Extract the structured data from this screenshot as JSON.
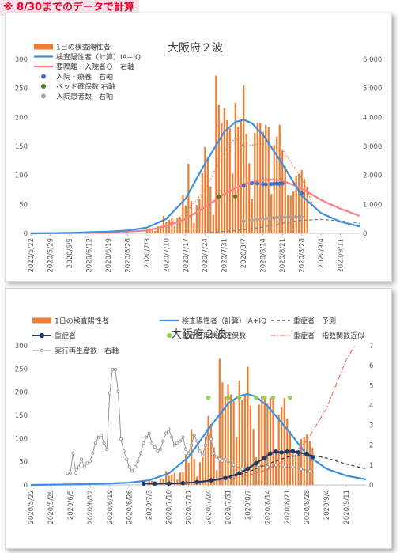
{
  "note": "※ 8/30までのデータで計算",
  "colors": {
    "bar": "#ed7d31",
    "blue": "#3d8fe0",
    "pink": "#ff7f7f",
    "navy": "#2f5597",
    "green": "#4d7f2d",
    "gray": "#a6a6a6",
    "lime": "#92d050",
    "dark": "#404040",
    "red": "#f07070"
  },
  "x_ticks": [
    "2020/5/22",
    "2020/5/29",
    "2020/6/5",
    "2020/6/12",
    "2020/6/19",
    "2020/6/26",
    "2020/7/3",
    "2020/7/10",
    "2020/7/17",
    "2020/7/24",
    "2020/7/31",
    "2020/8/7",
    "2020/8/14",
    "2020/8/21",
    "2020/8/28",
    "2020/9/4",
    "2020/9/11"
  ],
  "chart_data": [
    {
      "type": "bar",
      "title": "大阪府２波",
      "x_start": "2020/5/22",
      "x_end": "2020/9/18",
      "ylim": [
        0,
        300
      ],
      "yticks": [
        0,
        50,
        100,
        150,
        200,
        250,
        300
      ],
      "y2lim": [
        0,
        6000
      ],
      "y2ticks": [
        "0",
        "1,000",
        "2,000",
        "3,000",
        "4,000",
        "5,000",
        "6,000"
      ],
      "legend": {
        "bar": "1日の検査陽性者",
        "fit": "検査陽性者（計算）IA+IQ",
        "q": "要隔離・入院者Ｑ　右軸",
        "hosp": "入院・療養　右軸",
        "beds": "ベッド確保数 右軸",
        "inpat": "入院患者数　右軸"
      },
      "daily_positive": {
        "dates": [
          "2020/7/3",
          "2020/7/4",
          "2020/7/5",
          "2020/7/6",
          "2020/7/7",
          "2020/7/8",
          "2020/7/9",
          "2020/7/10",
          "2020/7/11",
          "2020/7/12",
          "2020/7/13",
          "2020/7/14",
          "2020/7/15",
          "2020/7/16",
          "2020/7/17",
          "2020/7/18",
          "2020/7/19",
          "2020/7/20",
          "2020/7/21",
          "2020/7/22",
          "2020/7/23",
          "2020/7/24",
          "2020/7/25",
          "2020/7/26",
          "2020/7/27",
          "2020/7/28",
          "2020/7/29",
          "2020/7/30",
          "2020/7/31",
          "2020/8/1",
          "2020/8/2",
          "2020/8/3",
          "2020/8/4",
          "2020/8/5",
          "2020/8/6",
          "2020/8/7",
          "2020/8/8",
          "2020/8/9",
          "2020/8/10",
          "2020/8/11",
          "2020/8/12",
          "2020/8/13",
          "2020/8/14",
          "2020/8/15",
          "2020/8/16",
          "2020/8/17",
          "2020/8/18",
          "2020/8/19",
          "2020/8/20",
          "2020/8/21",
          "2020/8/22",
          "2020/8/23",
          "2020/8/24",
          "2020/8/25",
          "2020/8/26",
          "2020/8/27",
          "2020/8/28",
          "2020/8/29",
          "2020/8/30"
        ],
        "values": [
          8,
          9,
          6,
          4,
          12,
          13,
          30,
          20,
          23,
          26,
          12,
          27,
          28,
          66,
          48,
          120,
          56,
          18,
          49,
          60,
          104,
          149,
          132,
          81,
          32,
          272,
          221,
          190,
          216,
          195,
          181,
          103,
          225,
          183,
          196,
          255,
          171,
          121,
          59,
          173,
          191,
          190,
          175,
          187,
          183,
          68,
          152,
          167,
          187,
          143,
          116,
          66,
          65,
          72,
          99,
          103,
          109,
          94,
          80
        ]
      },
      "fitted_positive": {
        "dates": [
          "2020/5/22",
          "2020/6/5",
          "2020/6/19",
          "2020/6/26",
          "2020/7/3",
          "2020/7/10",
          "2020/7/17",
          "2020/7/24",
          "2020/7/31",
          "2020/8/4",
          "2020/8/7",
          "2020/8/10",
          "2020/8/14",
          "2020/8/21",
          "2020/8/28",
          "2020/9/4",
          "2020/9/11",
          "2020/9/18"
        ],
        "values": [
          0,
          1,
          3,
          5,
          10,
          25,
          60,
          120,
          175,
          192,
          196,
          190,
          170,
          120,
          65,
          35,
          20,
          12
        ]
      },
      "q_right": {
        "dates": [
          "2020/5/22",
          "2020/6/19",
          "2020/7/3",
          "2020/7/10",
          "2020/7/17",
          "2020/7/24",
          "2020/7/31",
          "2020/8/7",
          "2020/8/14",
          "2020/8/17",
          "2020/8/21",
          "2020/8/28",
          "2020/9/4",
          "2020/9/11",
          "2020/9/18"
        ],
        "values": [
          0,
          20,
          100,
          250,
          500,
          900,
          1350,
          1700,
          1850,
          1860,
          1820,
          1550,
          1150,
          850,
          600
        ]
      },
      "hosp_right": {
        "dates": [
          "2020/8/7",
          "2020/8/10",
          "2020/8/12",
          "2020/8/14",
          "2020/8/15",
          "2020/8/17",
          "2020/8/18",
          "2020/8/19",
          "2020/8/20",
          "2020/8/21",
          "2020/8/28"
        ],
        "values": [
          1640,
          1730,
          1720,
          1700,
          1690,
          1700,
          1710,
          1720,
          1710,
          1720,
          1380
        ]
      },
      "beds_right": {
        "dates": [
          "2020/7/29",
          "2020/8/4"
        ],
        "values": [
          1270,
          1270
        ]
      },
      "inpatients_right": {
        "dates": [
          "2020/8/7",
          "2020/8/10",
          "2020/8/12",
          "2020/8/14",
          "2020/8/16",
          "2020/8/18",
          "2020/8/20",
          "2020/8/22",
          "2020/8/24",
          "2020/8/26",
          "2020/8/28"
        ],
        "values": [
          420,
          450,
          480,
          500,
          520,
          540,
          550,
          560,
          560,
          570,
          570
        ]
      },
      "dotted_right": {
        "dates": [
          "2020/7/3",
          "2020/7/10",
          "2020/7/17",
          "2020/7/24",
          "2020/7/31",
          "2020/8/4",
          "2020/8/7",
          "2020/8/14",
          "2020/8/21",
          "2020/8/28",
          "2020/9/1"
        ],
        "values": [
          50,
          250,
          700,
          1500,
          2800,
          3300,
          3000,
          3100,
          2900,
          1900,
          1000
        ]
      },
      "dashed_right": {
        "dates": [
          "2020/7/24",
          "2020/8/7",
          "2020/8/14",
          "2020/8/21",
          "2020/8/28",
          "2020/9/4",
          "2020/9/11",
          "2020/9/18"
        ],
        "values": [
          20,
          120,
          220,
          350,
          450,
          480,
          430,
          350
        ]
      }
    },
    {
      "type": "bar",
      "title": "大阪府２波",
      "x_start": "2020/5/22",
      "x_end": "2020/9/18",
      "ylim": [
        0,
        300
      ],
      "yticks": [
        0,
        50,
        100,
        150,
        200,
        250,
        300
      ],
      "y2lim": [
        0,
        7
      ],
      "y2ticks": [
        0,
        1,
        2,
        3,
        4,
        5,
        6,
        7
      ],
      "legend": {
        "bar": "1日の検査陽性者",
        "fit": "検査陽性者（計算）IA+IQ",
        "severe_pred": "重症者　予測",
        "severe": "重症者",
        "severe_beds": "重症者用病床確保数",
        "expo": "重症者　指数関数近似",
        "rt": "実行再生産数　右軸"
      },
      "severe_beds": {
        "dates": [
          "2020/7/24",
          "2020/7/31",
          "2020/8/4",
          "2020/8/10",
          "2020/8/13",
          "2020/8/16",
          "2020/8/22"
        ],
        "values": [
          188,
          188,
          188,
          188,
          188,
          188,
          188
        ]
      },
      "severe": {
        "dates": [
          "2020/7/1",
          "2020/7/5",
          "2020/7/10",
          "2020/7/15",
          "2020/7/20",
          "2020/7/25",
          "2020/7/30",
          "2020/8/4",
          "2020/8/7",
          "2020/8/10",
          "2020/8/13",
          "2020/8/15",
          "2020/8/17",
          "2020/8/19",
          "2020/8/21",
          "2020/8/23",
          "2020/8/25",
          "2020/8/28",
          "2020/8/30"
        ],
        "values": [
          3,
          3,
          3,
          4,
          6,
          10,
          15,
          25,
          35,
          47,
          58,
          68,
          72,
          70,
          72,
          73,
          70,
          67,
          60
        ]
      },
      "severe_pred": {
        "dates": [
          "2020/7/10",
          "2020/7/20",
          "2020/7/31",
          "2020/8/7",
          "2020/8/14",
          "2020/8/21",
          "2020/8/28",
          "2020/9/4",
          "2020/9/11",
          "2020/9/18"
        ],
        "values": [
          2,
          5,
          14,
          28,
          45,
          60,
          66,
          58,
          45,
          35
        ]
      },
      "expo": {
        "dates": [
          "2020/7/20",
          "2020/7/31",
          "2020/8/7",
          "2020/8/14",
          "2020/8/21",
          "2020/8/28",
          "2020/9/4",
          "2020/9/11",
          "2020/9/14"
        ],
        "values": [
          5,
          12,
          20,
          33,
          55,
          95,
          165,
          270,
          300
        ]
      },
      "rt": {
        "dates": [
          "2020/6/4",
          "2020/6/5",
          "2020/6/6",
          "2020/6/7",
          "2020/6/8",
          "2020/6/9",
          "2020/6/10",
          "2020/6/11",
          "2020/6/12",
          "2020/6/13",
          "2020/6/14",
          "2020/6/15",
          "2020/6/16",
          "2020/6/17",
          "2020/6/18",
          "2020/6/19",
          "2020/6/20",
          "2020/6/21",
          "2020/6/22",
          "2020/6/23",
          "2020/6/24",
          "2020/6/25",
          "2020/6/26",
          "2020/6/27",
          "2020/6/28",
          "2020/6/29",
          "2020/6/30",
          "2020/7/1",
          "2020/7/2",
          "2020/7/3",
          "2020/7/4",
          "2020/7/5",
          "2020/7/6",
          "2020/7/7",
          "2020/7/8",
          "2020/7/9",
          "2020/7/10",
          "2020/7/11",
          "2020/7/12",
          "2020/7/13",
          "2020/7/14",
          "2020/7/15",
          "2020/7/16",
          "2020/7/17",
          "2020/7/18",
          "2020/7/19",
          "2020/7/20",
          "2020/7/21",
          "2020/7/22",
          "2020/7/23",
          "2020/7/24",
          "2020/7/25",
          "2020/7/26",
          "2020/7/27",
          "2020/7/28",
          "2020/7/29",
          "2020/7/30",
          "2020/7/31",
          "2020/8/2",
          "2020/8/5",
          "2020/8/8",
          "2020/8/11",
          "2020/8/14",
          "2020/8/17",
          "2020/8/20",
          "2020/8/23",
          "2020/8/26",
          "2020/8/29"
        ],
        "values": [
          0.6,
          0.6,
          1.6,
          0.6,
          0.9,
          1.3,
          0.9,
          1.1,
          1.2,
          1.6,
          2.1,
          2.4,
          2.5,
          2.1,
          1.8,
          4.6,
          5.8,
          5.8,
          4.7,
          2.3,
          1.7,
          1.3,
          0.9,
          0.7,
          0.9,
          1.2,
          1.6,
          2.1,
          2.4,
          2.6,
          2.1,
          1.9,
          1.7,
          1.8,
          2.2,
          2.6,
          2.8,
          2.4,
          2.0,
          2.1,
          2.2,
          2.4,
          1.8,
          1.6,
          2.0,
          2.5,
          2.2,
          1.7,
          1.5,
          2.0,
          2.8,
          2.3,
          1.6,
          1.4,
          1.3,
          1.2,
          1.3,
          1.2,
          1.0,
          0.8,
          0.9,
          1.0,
          0.9,
          1.0,
          0.9,
          0.9,
          0.8,
          0.7
        ]
      }
    }
  ]
}
